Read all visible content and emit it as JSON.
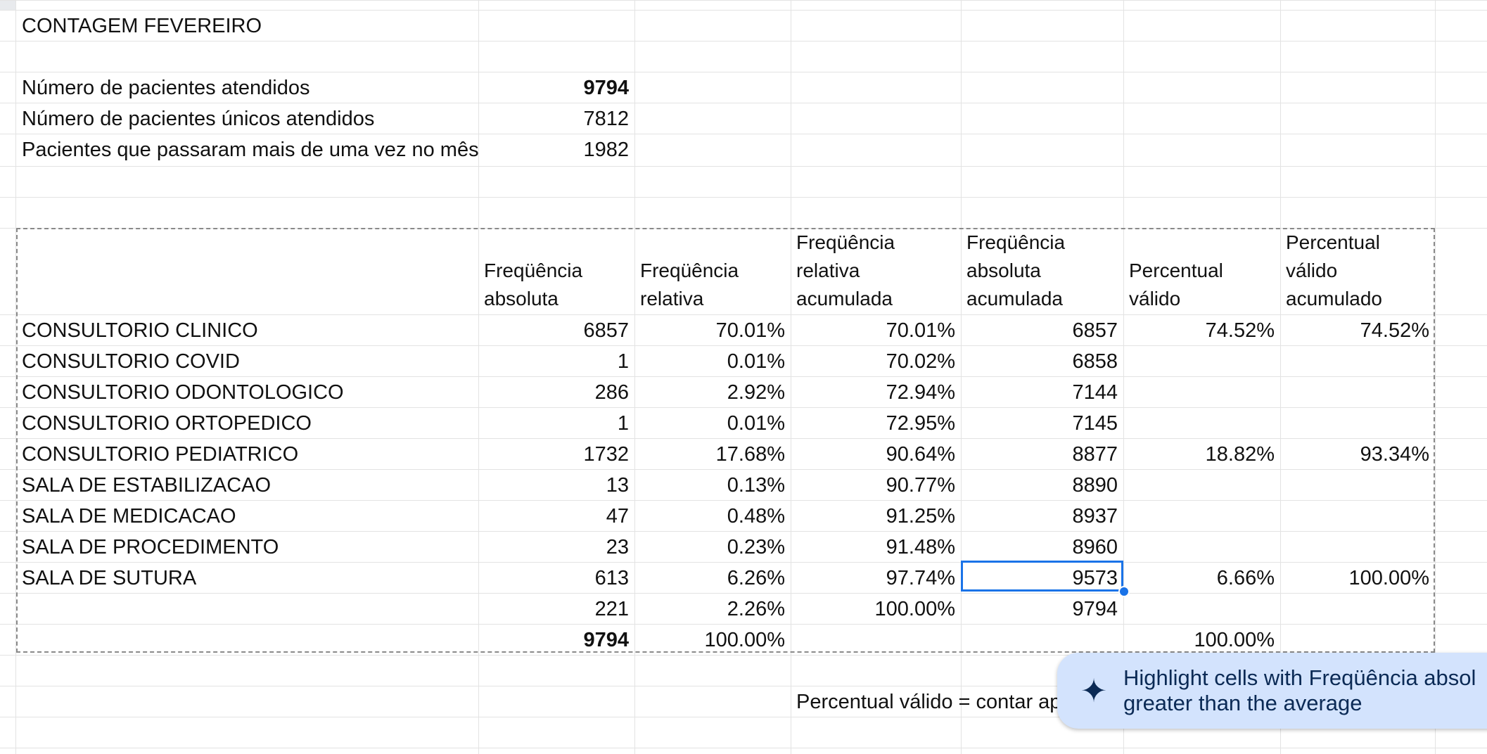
{
  "sheet": {
    "title": "CONTAGEM FEVEREIRO",
    "summary": [
      {
        "label": "Número de pacientes atendidos",
        "value": "9794",
        "bold": true
      },
      {
        "label": "Número de pacientes únicos atendidos",
        "value": "7812",
        "bold": false
      },
      {
        "label": "Pacientes que passaram mais de uma vez no mês",
        "value": "1982",
        "bold": false
      }
    ],
    "headers": [
      [
        "Freqüência",
        "absoluta"
      ],
      [
        "Freqüência",
        "relativa"
      ],
      [
        "Freqüência",
        "relativa",
        "acumulada"
      ],
      [
        "Freqüência",
        "absoluta",
        "acumulada"
      ],
      [
        "Percentual",
        "válido"
      ],
      [
        "Percentual",
        "válido",
        "acumulado"
      ]
    ],
    "rows": [
      [
        "CONSULTORIO CLINICO",
        "6857",
        "70.01%",
        "70.01%",
        "6857",
        "74.52%",
        "74.52%"
      ],
      [
        "CONSULTORIO COVID",
        "1",
        "0.01%",
        "70.02%",
        "6858",
        "",
        ""
      ],
      [
        "CONSULTORIO ODONTOLOGICO",
        "286",
        "2.92%",
        "72.94%",
        "7144",
        "",
        ""
      ],
      [
        "CONSULTORIO ORTOPEDICO",
        "1",
        "0.01%",
        "72.95%",
        "7145",
        "",
        ""
      ],
      [
        "CONSULTORIO PEDIATRICO",
        "1732",
        "17.68%",
        "90.64%",
        "8877",
        "18.82%",
        "93.34%"
      ],
      [
        "SALA DE ESTABILIZACAO",
        "13",
        "0.13%",
        "90.77%",
        "8890",
        "",
        ""
      ],
      [
        "SALA DE MEDICACAO",
        "47",
        "0.48%",
        "91.25%",
        "8937",
        "",
        ""
      ],
      [
        "SALA DE PROCEDIMENTO",
        "23",
        "0.23%",
        "91.48%",
        "8960",
        "",
        ""
      ],
      [
        "SALA DE SUTURA",
        "613",
        "6.26%",
        "97.74%",
        "9573",
        "6.66%",
        "100.00%"
      ],
      [
        "",
        "221",
        "2.26%",
        "100.00%",
        "9794",
        "",
        ""
      ],
      [
        "",
        "9794",
        "100.00%",
        "",
        "",
        "100.00%",
        ""
      ]
    ],
    "note": "Percentual válido = contar ap"
  },
  "suggestion": {
    "icon": "sparkle-icon",
    "line1": "Highlight cells with Freqüência absol",
    "line2": "greater than the average"
  },
  "colors": {
    "selection": "#1a73e8",
    "suggestion_bg": "#d3e3fd",
    "gridline": "#e3e3e3"
  }
}
